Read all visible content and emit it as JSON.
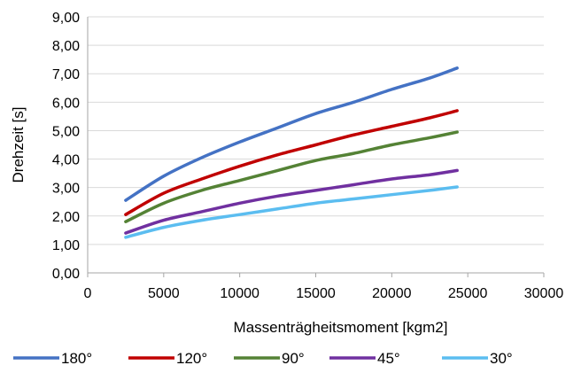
{
  "chart_data": {
    "type": "line",
    "title": "",
    "xlabel": "Massenträgheitsmoment [kgm2]",
    "ylabel": "Drehzeit [s]",
    "xlim": [
      0,
      30000
    ],
    "ylim": [
      0,
      9
    ],
    "x_ticks": [
      0,
      5000,
      10000,
      15000,
      20000,
      25000,
      30000
    ],
    "x_tick_labels": [
      "0",
      "5000",
      "10000",
      "15000",
      "20000",
      "25000",
      "30000"
    ],
    "y_ticks": [
      0,
      1,
      2,
      3,
      4,
      5,
      6,
      7,
      8,
      9
    ],
    "y_tick_labels": [
      "0,00",
      "1,00",
      "2,00",
      "3,00",
      "4,00",
      "5,00",
      "6,00",
      "7,00",
      "8,00",
      "9,00"
    ],
    "grid": "horizontal",
    "legend_position": "bottom",
    "x": [
      2500,
      5000,
      7500,
      10000,
      12500,
      15000,
      17500,
      20000,
      22500,
      24300
    ],
    "series": [
      {
        "name": "180°",
        "color": "#4472c4",
        "values": [
          2.55,
          3.4,
          4.05,
          4.6,
          5.1,
          5.6,
          6.0,
          6.45,
          6.85,
          7.2
        ]
      },
      {
        "name": "120°",
        "color": "#c00000",
        "values": [
          2.05,
          2.8,
          3.3,
          3.75,
          4.15,
          4.5,
          4.85,
          5.15,
          5.45,
          5.7
        ]
      },
      {
        "name": "90°",
        "color": "#548235",
        "values": [
          1.8,
          2.45,
          2.9,
          3.25,
          3.6,
          3.95,
          4.2,
          4.5,
          4.75,
          4.95
        ]
      },
      {
        "name": "45°",
        "color": "#7030a0",
        "values": [
          1.4,
          1.85,
          2.15,
          2.45,
          2.7,
          2.9,
          3.1,
          3.3,
          3.45,
          3.6
        ]
      },
      {
        "name": "30°",
        "color": "#5bbdf0",
        "values": [
          1.25,
          1.6,
          1.85,
          2.05,
          2.25,
          2.45,
          2.6,
          2.75,
          2.9,
          3.02
        ]
      }
    ]
  }
}
